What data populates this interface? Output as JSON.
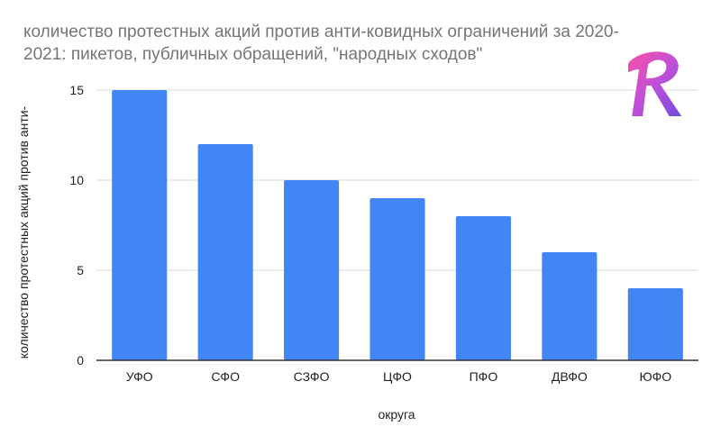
{
  "colors": {
    "bar": "#4285f4",
    "grid": "#d9d9d9",
    "axis": "#333333"
  },
  "logo": {
    "letter": "R",
    "icon": "r-logo-icon"
  },
  "chart_data": {
    "type": "bar",
    "title_lines": [
      "количество протестных акций против анти-ковидных ограничений за 2020-",
      "2021: пикетов, публичных обращений, \"народных сходов\""
    ],
    "xlabel": "округа",
    "ylabel": "количество протестных акций против анти-",
    "categories": [
      "УФО",
      "СФО",
      "СЗФО",
      "ЦФО",
      "ПФО",
      "ДВФО",
      "ЮФО"
    ],
    "values": [
      15,
      12,
      10,
      9,
      8,
      6,
      4
    ],
    "ylim": [
      0,
      15
    ],
    "yticks": [
      0,
      5,
      10,
      15
    ],
    "grid": true,
    "legend": "none"
  }
}
